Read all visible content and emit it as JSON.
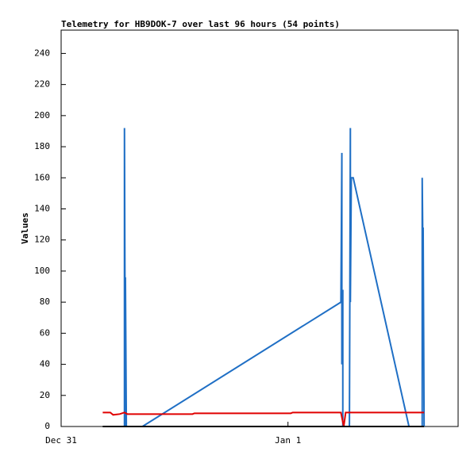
{
  "chart_data": {
    "type": "line",
    "title": "Telemetry for HB9DOK-7 over last 96 hours (54 points)",
    "y_label": "Values",
    "xlim": [
      0,
      42
    ],
    "xticks": [
      {
        "value": 0,
        "label": "Dec 31"
      },
      {
        "value": 24,
        "label": "Jan 1"
      }
    ],
    "ylim": [
      0,
      255
    ],
    "yticks": [
      0,
      20,
      40,
      60,
      80,
      100,
      120,
      140,
      160,
      180,
      200,
      220,
      240
    ],
    "series": [
      {
        "color": "#1f6fc5",
        "x": [
          6.7,
          6.7,
          6.8,
          6.8,
          6.9,
          8.6,
          29.6,
          29.7,
          29.7,
          29.8,
          29.8,
          30.5,
          30.6,
          30.6,
          30.7,
          30.9,
          36.8,
          38.2,
          38.2,
          38.3,
          38.3,
          38.4
        ],
        "values": [
          0,
          192,
          0,
          96,
          0,
          0,
          80,
          176,
          40,
          88,
          0,
          0,
          192,
          80,
          160,
          160,
          0,
          0,
          160,
          96,
          128,
          0
        ]
      },
      {
        "color": "#e00000",
        "x": [
          4.4,
          5.2,
          5.5,
          6.2,
          6.7,
          7.0,
          13.9,
          14.1,
          24.3,
          24.5,
          29.6,
          29.9,
          30.1,
          38.4
        ],
        "values": [
          9,
          9,
          7.5,
          8,
          9,
          8,
          8,
          8.5,
          8.5,
          9,
          9,
          0,
          9,
          9
        ]
      },
      {
        "color": "#000000",
        "x": [
          4.4,
          38.4
        ],
        "values": [
          0,
          0
        ]
      }
    ]
  }
}
